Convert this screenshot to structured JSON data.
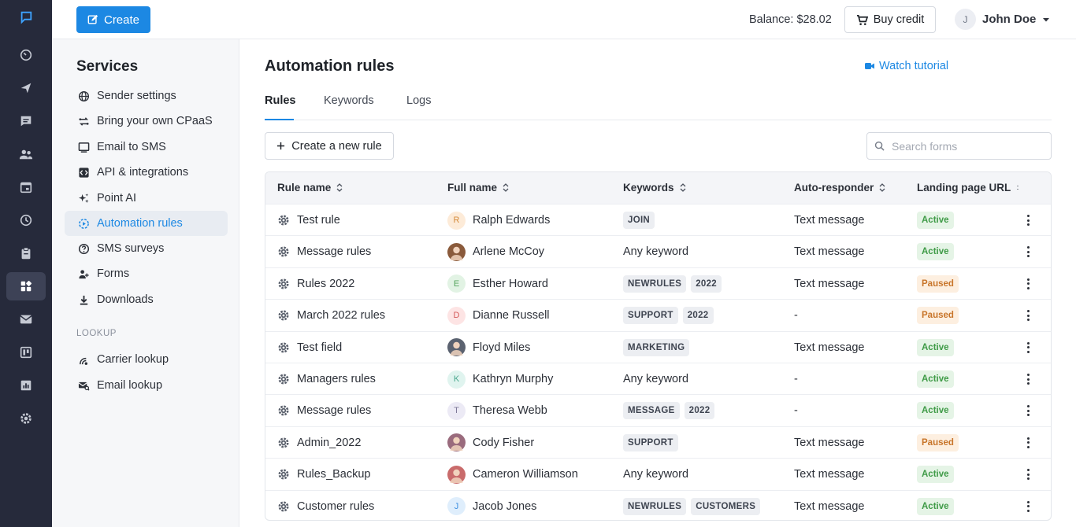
{
  "topbar": {
    "create_label": "Create",
    "balance": "Balance: $28.02",
    "buy_credit_label": "Buy credit",
    "user_initial": "J",
    "user_name": "John Doe"
  },
  "rail": {
    "items": [
      "chat-logo-icon",
      "dashboard-icon",
      "send-icon",
      "messages-icon",
      "contacts-icon",
      "calendar-icon",
      "history-icon",
      "clipboard-icon",
      "services-icon",
      "email-icon",
      "board-icon",
      "analytics-icon",
      "settings-icon"
    ],
    "active_index": 8
  },
  "services": {
    "title": "Services",
    "items": [
      {
        "label": "Sender settings",
        "icon": "globe-icon"
      },
      {
        "label": "Bring your own CPaaS",
        "icon": "swap-icon"
      },
      {
        "label": "Email to SMS",
        "icon": "monitor-icon"
      },
      {
        "label": "API & integrations",
        "icon": "code-icon"
      },
      {
        "label": "Point AI",
        "icon": "sparkle-icon"
      },
      {
        "label": "Automation rules",
        "icon": "automation-icon",
        "active": true
      },
      {
        "label": "SMS surveys",
        "icon": "question-icon"
      },
      {
        "label": "Forms",
        "icon": "person-form-icon"
      },
      {
        "label": "Downloads",
        "icon": "download-icon"
      }
    ],
    "lookup_heading": "LOOKUP",
    "lookup_items": [
      {
        "label": "Carrier lookup",
        "icon": "carrier-icon"
      },
      {
        "label": "Email lookup",
        "icon": "email-search-icon"
      }
    ]
  },
  "main": {
    "title": "Automation rules",
    "watch_tutorial": "Watch tutorial",
    "tabs": [
      "Rules",
      "Keywords",
      "Logs"
    ],
    "active_tab": "Rules",
    "new_rule_label": "Create a new rule",
    "search_placeholder": "Search forms"
  },
  "table": {
    "columns": [
      "Rule name",
      "Full name",
      "Keywords",
      "Auto-responder",
      "Landing page URL"
    ],
    "rows": [
      {
        "rule": "Test rule",
        "name": "Ralph Edwards",
        "avatar": "R",
        "avatar_color": "#fdebd8",
        "avatar_text": "#d48a3a",
        "keywords": [
          "JOIN"
        ],
        "keyword_text": "",
        "responder": "Text message",
        "status": "Active"
      },
      {
        "rule": "Message rules",
        "name": "Arlene McCoy",
        "avatar": "photo",
        "avatar_color": "#8a5a3b",
        "avatar_text": "#fff",
        "keywords": [],
        "keyword_text": "Any keyword",
        "responder": "Text message",
        "status": "Active"
      },
      {
        "rule": "Rules 2022",
        "name": "Esther Howard",
        "avatar": "E",
        "avatar_color": "#e2f3e4",
        "avatar_text": "#55a55e",
        "keywords": [
          "NEWRULES",
          "2022"
        ],
        "keyword_text": "",
        "responder": "Text message",
        "status": "Paused"
      },
      {
        "rule": "March 2022 rules",
        "name": "Dianne Russell",
        "avatar": "D",
        "avatar_color": "#fde4e4",
        "avatar_text": "#d45a5a",
        "keywords": [
          "SUPPORT",
          "2022"
        ],
        "keyword_text": "",
        "responder": "-",
        "status": "Paused"
      },
      {
        "rule": "Test field",
        "name": "Floyd Miles",
        "avatar": "photo",
        "avatar_color": "#5b6270",
        "avatar_text": "#fff",
        "keywords": [
          "MARKETING"
        ],
        "keyword_text": "",
        "responder": "Text message",
        "status": "Active"
      },
      {
        "rule": "Managers rules",
        "name": "Kathryn Murphy",
        "avatar": "K",
        "avatar_color": "#e0f4ef",
        "avatar_text": "#4aa88f",
        "keywords": [],
        "keyword_text": "Any keyword",
        "responder": "-",
        "status": "Active"
      },
      {
        "rule": "Message rules",
        "name": "Theresa Webb",
        "avatar": "T",
        "avatar_color": "#eceaf5",
        "avatar_text": "#7d7898",
        "keywords": [
          "MESSAGE",
          "2022"
        ],
        "keyword_text": "",
        "responder": "-",
        "status": "Active"
      },
      {
        "rule": "Admin_2022",
        "name": "Cody Fisher",
        "avatar": "photo",
        "avatar_color": "#9a6b7d",
        "avatar_text": "#fff",
        "keywords": [
          "SUPPORT"
        ],
        "keyword_text": "",
        "responder": "Text message",
        "status": "Paused"
      },
      {
        "rule": "Rules_Backup",
        "name": "Cameron Williamson",
        "avatar": "photo",
        "avatar_color": "#c96b6b",
        "avatar_text": "#fff",
        "keywords": [],
        "keyword_text": "Any keyword",
        "responder": "Text message",
        "status": "Active"
      },
      {
        "rule": "Customer rules",
        "name": "Jacob Jones",
        "avatar": "J",
        "avatar_color": "#dfeefc",
        "avatar_text": "#3d8fe0",
        "keywords": [
          "NEWRULES",
          "CUSTOMERS"
        ],
        "keyword_text": "",
        "responder": "Text message",
        "status": "Active"
      }
    ]
  },
  "colors": {
    "accent": "#1c88e3",
    "rail": "#262a3b",
    "active_badge": "#3f9b47",
    "paused_badge": "#c8752a"
  }
}
